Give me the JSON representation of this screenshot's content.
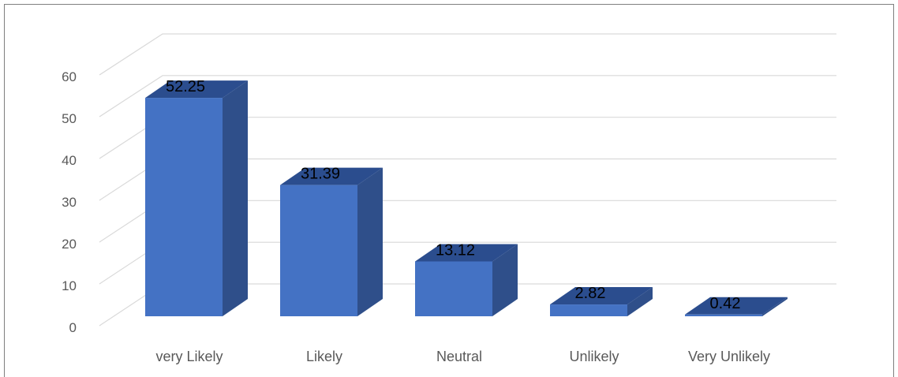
{
  "chart_data": {
    "type": "bar",
    "style": "3d-column",
    "categories": [
      "very Likely",
      "Likely",
      "Neutral",
      "Unlikely",
      "Very Unlikely"
    ],
    "values": [
      52.25,
      31.39,
      13.12,
      2.82,
      0.42
    ],
    "data_labels": [
      "52.25",
      "31.39",
      "13.12",
      "2.82",
      "0.42"
    ],
    "title": "",
    "xlabel": "",
    "ylabel": "",
    "ylim": [
      0,
      60
    ],
    "yticks": [
      "0",
      "10",
      "20",
      "30",
      "40",
      "50",
      "60"
    ],
    "grid": true,
    "legend": "none",
    "colors": {
      "bar_front": "#4472C4",
      "bar_side": "#2F4F8A",
      "bar_top": "#2B4D8E",
      "gridline": "#D9D9D9",
      "axis_text": "#595959",
      "data_label_text": "#000000"
    }
  }
}
